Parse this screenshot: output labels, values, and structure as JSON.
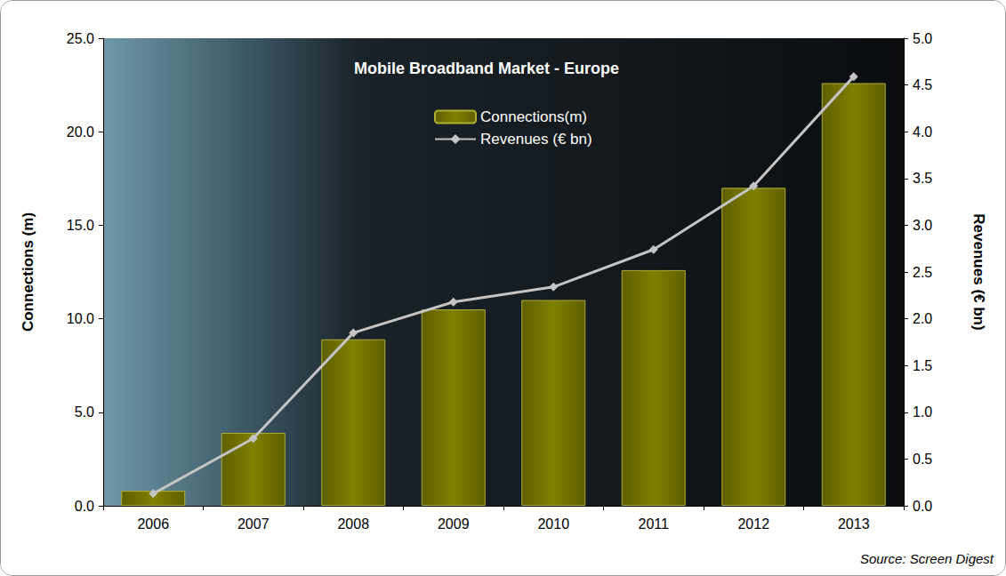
{
  "chart_data": {
    "type": "bar",
    "title": "Mobile Broadband Market - Europe",
    "source": "Source: Screen Digest",
    "categories": [
      "2006",
      "2007",
      "2008",
      "2009",
      "2010",
      "2011",
      "2012",
      "2013"
    ],
    "series": [
      {
        "name": "Connections(m)",
        "type": "bar",
        "color": "#808000",
        "values": [
          0.8,
          3.9,
          8.9,
          10.5,
          11.0,
          12.6,
          17.0,
          22.6
        ]
      },
      {
        "name": "Revenues (€ bn)",
        "type": "line",
        "axis": "y2",
        "color": "#c4c4c4",
        "marker": "diamond",
        "values": [
          0.13,
          0.72,
          1.85,
          2.18,
          2.34,
          2.74,
          3.42,
          4.59
        ]
      }
    ],
    "ylabel": "Connections (m)",
    "y2label": "Revenues (€ bn)",
    "ylim": [
      0,
      25
    ],
    "yticks": [
      {
        "value": 0,
        "label": "0.0"
      },
      {
        "value": 5,
        "label": "5.0"
      },
      {
        "value": 10,
        "label": "10.0"
      },
      {
        "value": 15,
        "label": "15.0"
      },
      {
        "value": 20,
        "label": "20.0"
      },
      {
        "value": 25,
        "label": "25.0"
      }
    ],
    "y2lim": [
      0,
      5
    ],
    "y2ticks": [
      {
        "value": 0,
        "label": "0.0"
      },
      {
        "value": 0.5,
        "label": "0.5"
      },
      {
        "value": 1,
        "label": "1.0"
      },
      {
        "value": 1.5,
        "label": "1.5"
      },
      {
        "value": 2,
        "label": "2.0"
      },
      {
        "value": 2.5,
        "label": "2.5"
      },
      {
        "value": 3,
        "label": "3.0"
      },
      {
        "value": 3.5,
        "label": "3.5"
      },
      {
        "value": 4,
        "label": "4.0"
      },
      {
        "value": 4.5,
        "label": "4.5"
      },
      {
        "value": 5,
        "label": "5.0"
      }
    ],
    "grid": false,
    "legend": "top"
  }
}
